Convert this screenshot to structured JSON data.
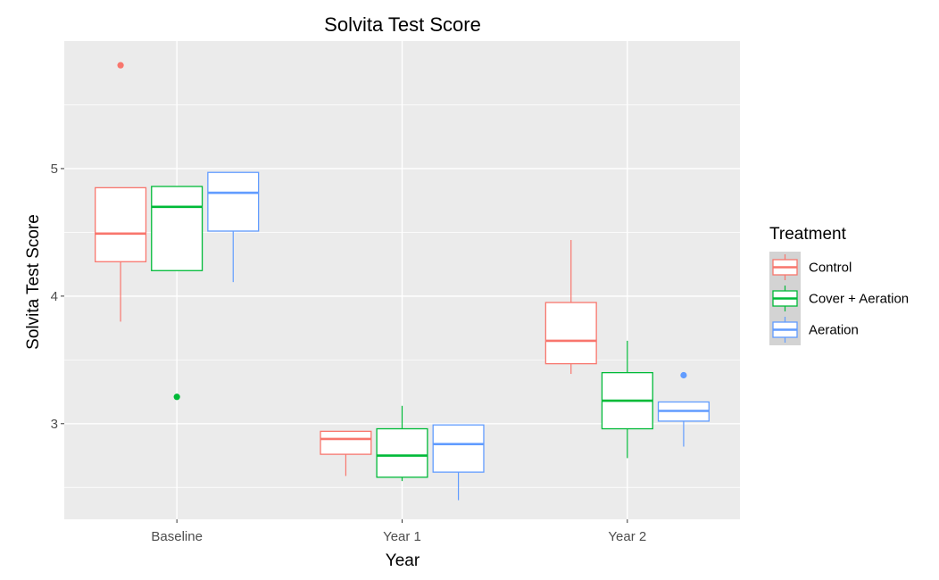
{
  "chart_data": {
    "type": "boxplot",
    "title": "Solvita Test Score",
    "xlabel": "Year",
    "ylabel": "Solvita Test Score",
    "categories": [
      "Baseline",
      "Year 1",
      "Year 2"
    ],
    "y_ticks": [
      3,
      4,
      5
    ],
    "ylim": [
      2.25,
      6.0
    ],
    "grid": true,
    "legend": {
      "title": "Treatment",
      "position": "right"
    },
    "series": [
      {
        "name": "Control",
        "color": "#F8766D",
        "boxes": [
          {
            "category": "Baseline",
            "whisker_low": 3.8,
            "q1": 4.27,
            "median": 4.49,
            "q3": 4.85,
            "whisker_high": 4.85,
            "outliers": [
              5.81
            ]
          },
          {
            "category": "Year 1",
            "whisker_low": 2.59,
            "q1": 2.76,
            "median": 2.88,
            "q3": 2.94,
            "whisker_high": 2.94,
            "outliers": []
          },
          {
            "category": "Year 2",
            "whisker_low": 3.39,
            "q1": 3.47,
            "median": 3.65,
            "q3": 3.95,
            "whisker_high": 4.44,
            "outliers": []
          }
        ]
      },
      {
        "name": "Cover + Aeration",
        "color": "#00BA38",
        "boxes": [
          {
            "category": "Baseline",
            "whisker_low": 4.2,
            "q1": 4.2,
            "median": 4.7,
            "q3": 4.86,
            "whisker_high": 4.86,
            "outliers": [
              3.21
            ]
          },
          {
            "category": "Year 1",
            "whisker_low": 2.55,
            "q1": 2.58,
            "median": 2.75,
            "q3": 2.96,
            "whisker_high": 3.14,
            "outliers": []
          },
          {
            "category": "Year 2",
            "whisker_low": 2.73,
            "q1": 2.96,
            "median": 3.18,
            "q3": 3.4,
            "whisker_high": 3.65,
            "outliers": []
          }
        ]
      },
      {
        "name": "Aeration",
        "color": "#619CFF",
        "boxes": [
          {
            "category": "Baseline",
            "whisker_low": 4.11,
            "q1": 4.51,
            "median": 4.81,
            "q3": 4.97,
            "whisker_high": 4.97,
            "outliers": []
          },
          {
            "category": "Year 1",
            "whisker_low": 2.4,
            "q1": 2.62,
            "median": 2.84,
            "q3": 2.99,
            "whisker_high": 2.99,
            "outliers": []
          },
          {
            "category": "Year 2",
            "whisker_low": 2.82,
            "q1": 3.02,
            "median": 3.1,
            "q3": 3.17,
            "whisker_high": 3.17,
            "outliers": [
              3.38
            ]
          }
        ]
      }
    ]
  }
}
